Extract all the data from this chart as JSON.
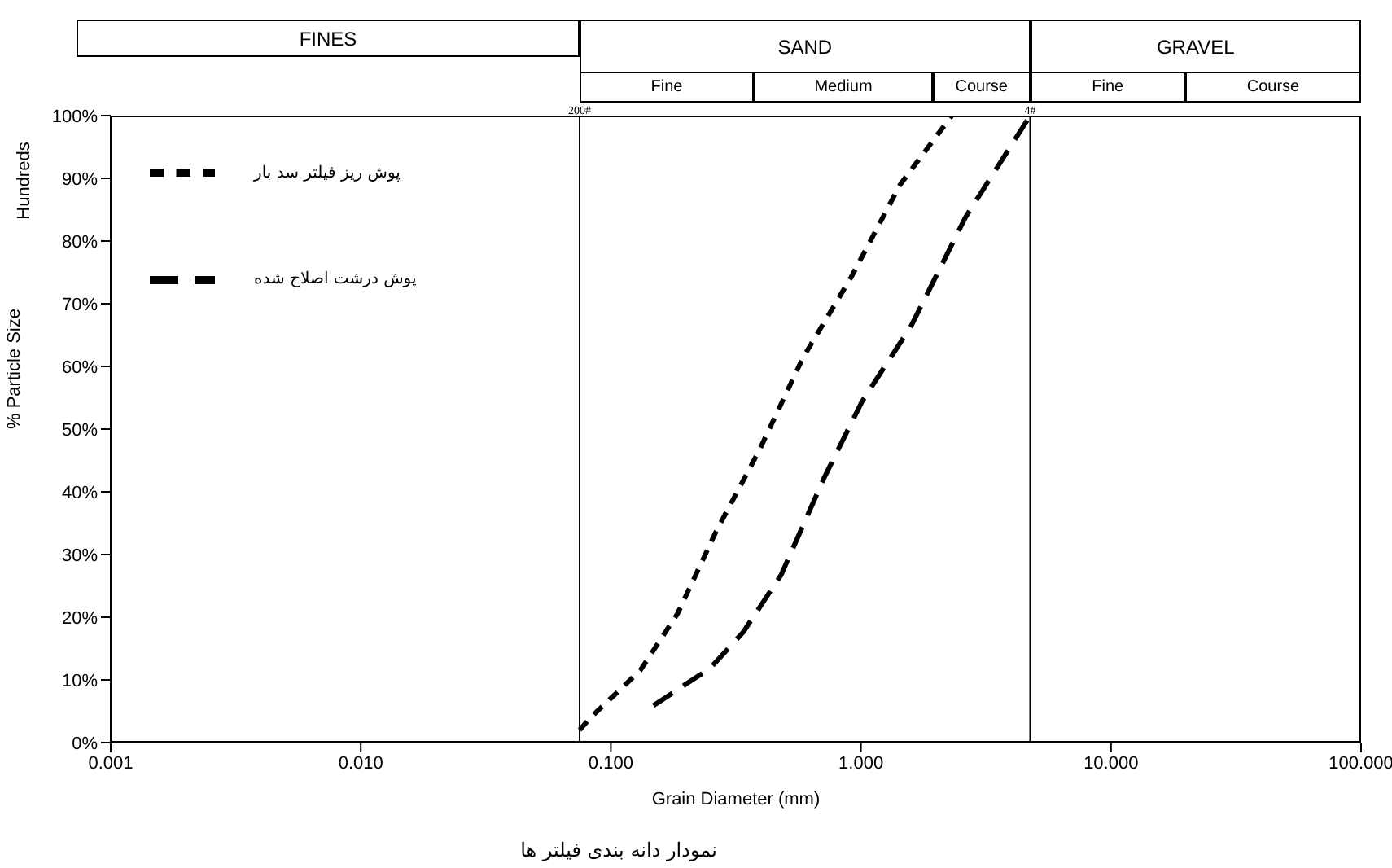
{
  "chart_data": {
    "type": "line",
    "xlabel": "Grain Diameter (mm)",
    "ylabel": "% Particle Size",
    "log": "x",
    "xlim": [
      0.001,
      100
    ],
    "xticks": [
      {
        "value": 0.001,
        "label": "0.001"
      },
      {
        "value": 0.01,
        "label": "0.010"
      },
      {
        "value": 0.1,
        "label": "0.100"
      },
      {
        "value": 1,
        "label": "1.000"
      },
      {
        "value": 10,
        "label": "10.000"
      },
      {
        "value": 100,
        "label": "100.000"
      }
    ],
    "ylim": [
      0,
      100
    ],
    "yticks": [
      {
        "value": 0,
        "label": "0%"
      },
      {
        "value": 10,
        "label": "10%"
      },
      {
        "value": 20,
        "label": "20%"
      },
      {
        "value": 30,
        "label": "30%"
      },
      {
        "value": 40,
        "label": "40%"
      },
      {
        "value": 50,
        "label": "50%"
      },
      {
        "value": 60,
        "label": "60%"
      },
      {
        "value": 70,
        "label": "70%"
      },
      {
        "value": 80,
        "label": "80%"
      },
      {
        "value": 90,
        "label": "90%"
      },
      {
        "value": 100,
        "label": "100%"
      }
    ],
    "legend": "top left",
    "marker": "none",
    "line_style": "dashed",
    "series": [
      {
        "name": "پوش ریز فیلتر سد بار",
        "color": "#000000",
        "x": [
          0.075,
          0.083,
          0.131,
          0.185,
          0.263,
          0.392,
          0.585,
          0.916,
          1.435,
          2.31
        ],
        "values": [
          2,
          4,
          11.5,
          20.6,
          33.6,
          46.6,
          61.3,
          74.3,
          89,
          100
        ]
      },
      {
        "name": "پوش درشت اصلاح شده",
        "color": "#000000",
        "x": [
          0.148,
          0.25,
          0.338,
          0.479,
          0.714,
          1.01,
          1.59,
          2.62,
          4.75
        ],
        "values": [
          5.9,
          11.9,
          17.6,
          26.7,
          42.3,
          54.4,
          66.5,
          83.8,
          100
        ]
      }
    ],
    "ref_lines": [
      {
        "axis": "x",
        "value": 0.075,
        "color": "#000000"
      },
      {
        "axis": "x",
        "value": 4.75,
        "color": "#000000"
      }
    ],
    "annotations": [
      {
        "text": "200#",
        "x": 0.075,
        "y": 100
      },
      {
        "text": "4#",
        "x": 4.75,
        "y": 100
      },
      "FINES",
      "SAND",
      "GRAVEL",
      "Fine",
      "Medium",
      "Course",
      "Fine",
      "Course",
      "Hundreds",
      "نمودار دانه بندی فیلتر ها"
    ]
  }
}
